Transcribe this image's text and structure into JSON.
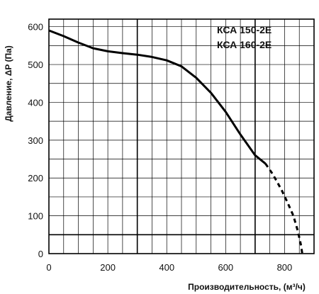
{
  "chart_data": {
    "type": "line",
    "title": "",
    "xlabel": "Производительность, (м³/ч)",
    "ylabel": "Давление, ΔP (Па)",
    "xlim": [
      0,
      900
    ],
    "ylim": [
      0,
      620
    ],
    "x_ticks": [
      0,
      200,
      400,
      600,
      800
    ],
    "y_ticks": [
      0,
      100,
      200,
      300,
      400,
      500,
      600
    ],
    "grid": true,
    "legend_position": "top-right",
    "legend": [
      "КСА 150-2E",
      "КСА 160-2E"
    ],
    "series": [
      {
        "style": "solid",
        "x": [
          0,
          50,
          100,
          150,
          200,
          250,
          300,
          350,
          400,
          450,
          500,
          550,
          600,
          650,
          700,
          735
        ],
        "y": [
          590,
          575,
          558,
          543,
          535,
          530,
          526,
          520,
          511,
          495,
          465,
          425,
          375,
          315,
          260,
          238
        ]
      },
      {
        "style": "dashed",
        "x": [
          735,
          760,
          790,
          810,
          830,
          845,
          855,
          860
        ],
        "y": [
          238,
          210,
          168,
          135,
          100,
          60,
          25,
          0
        ]
      }
    ]
  }
}
